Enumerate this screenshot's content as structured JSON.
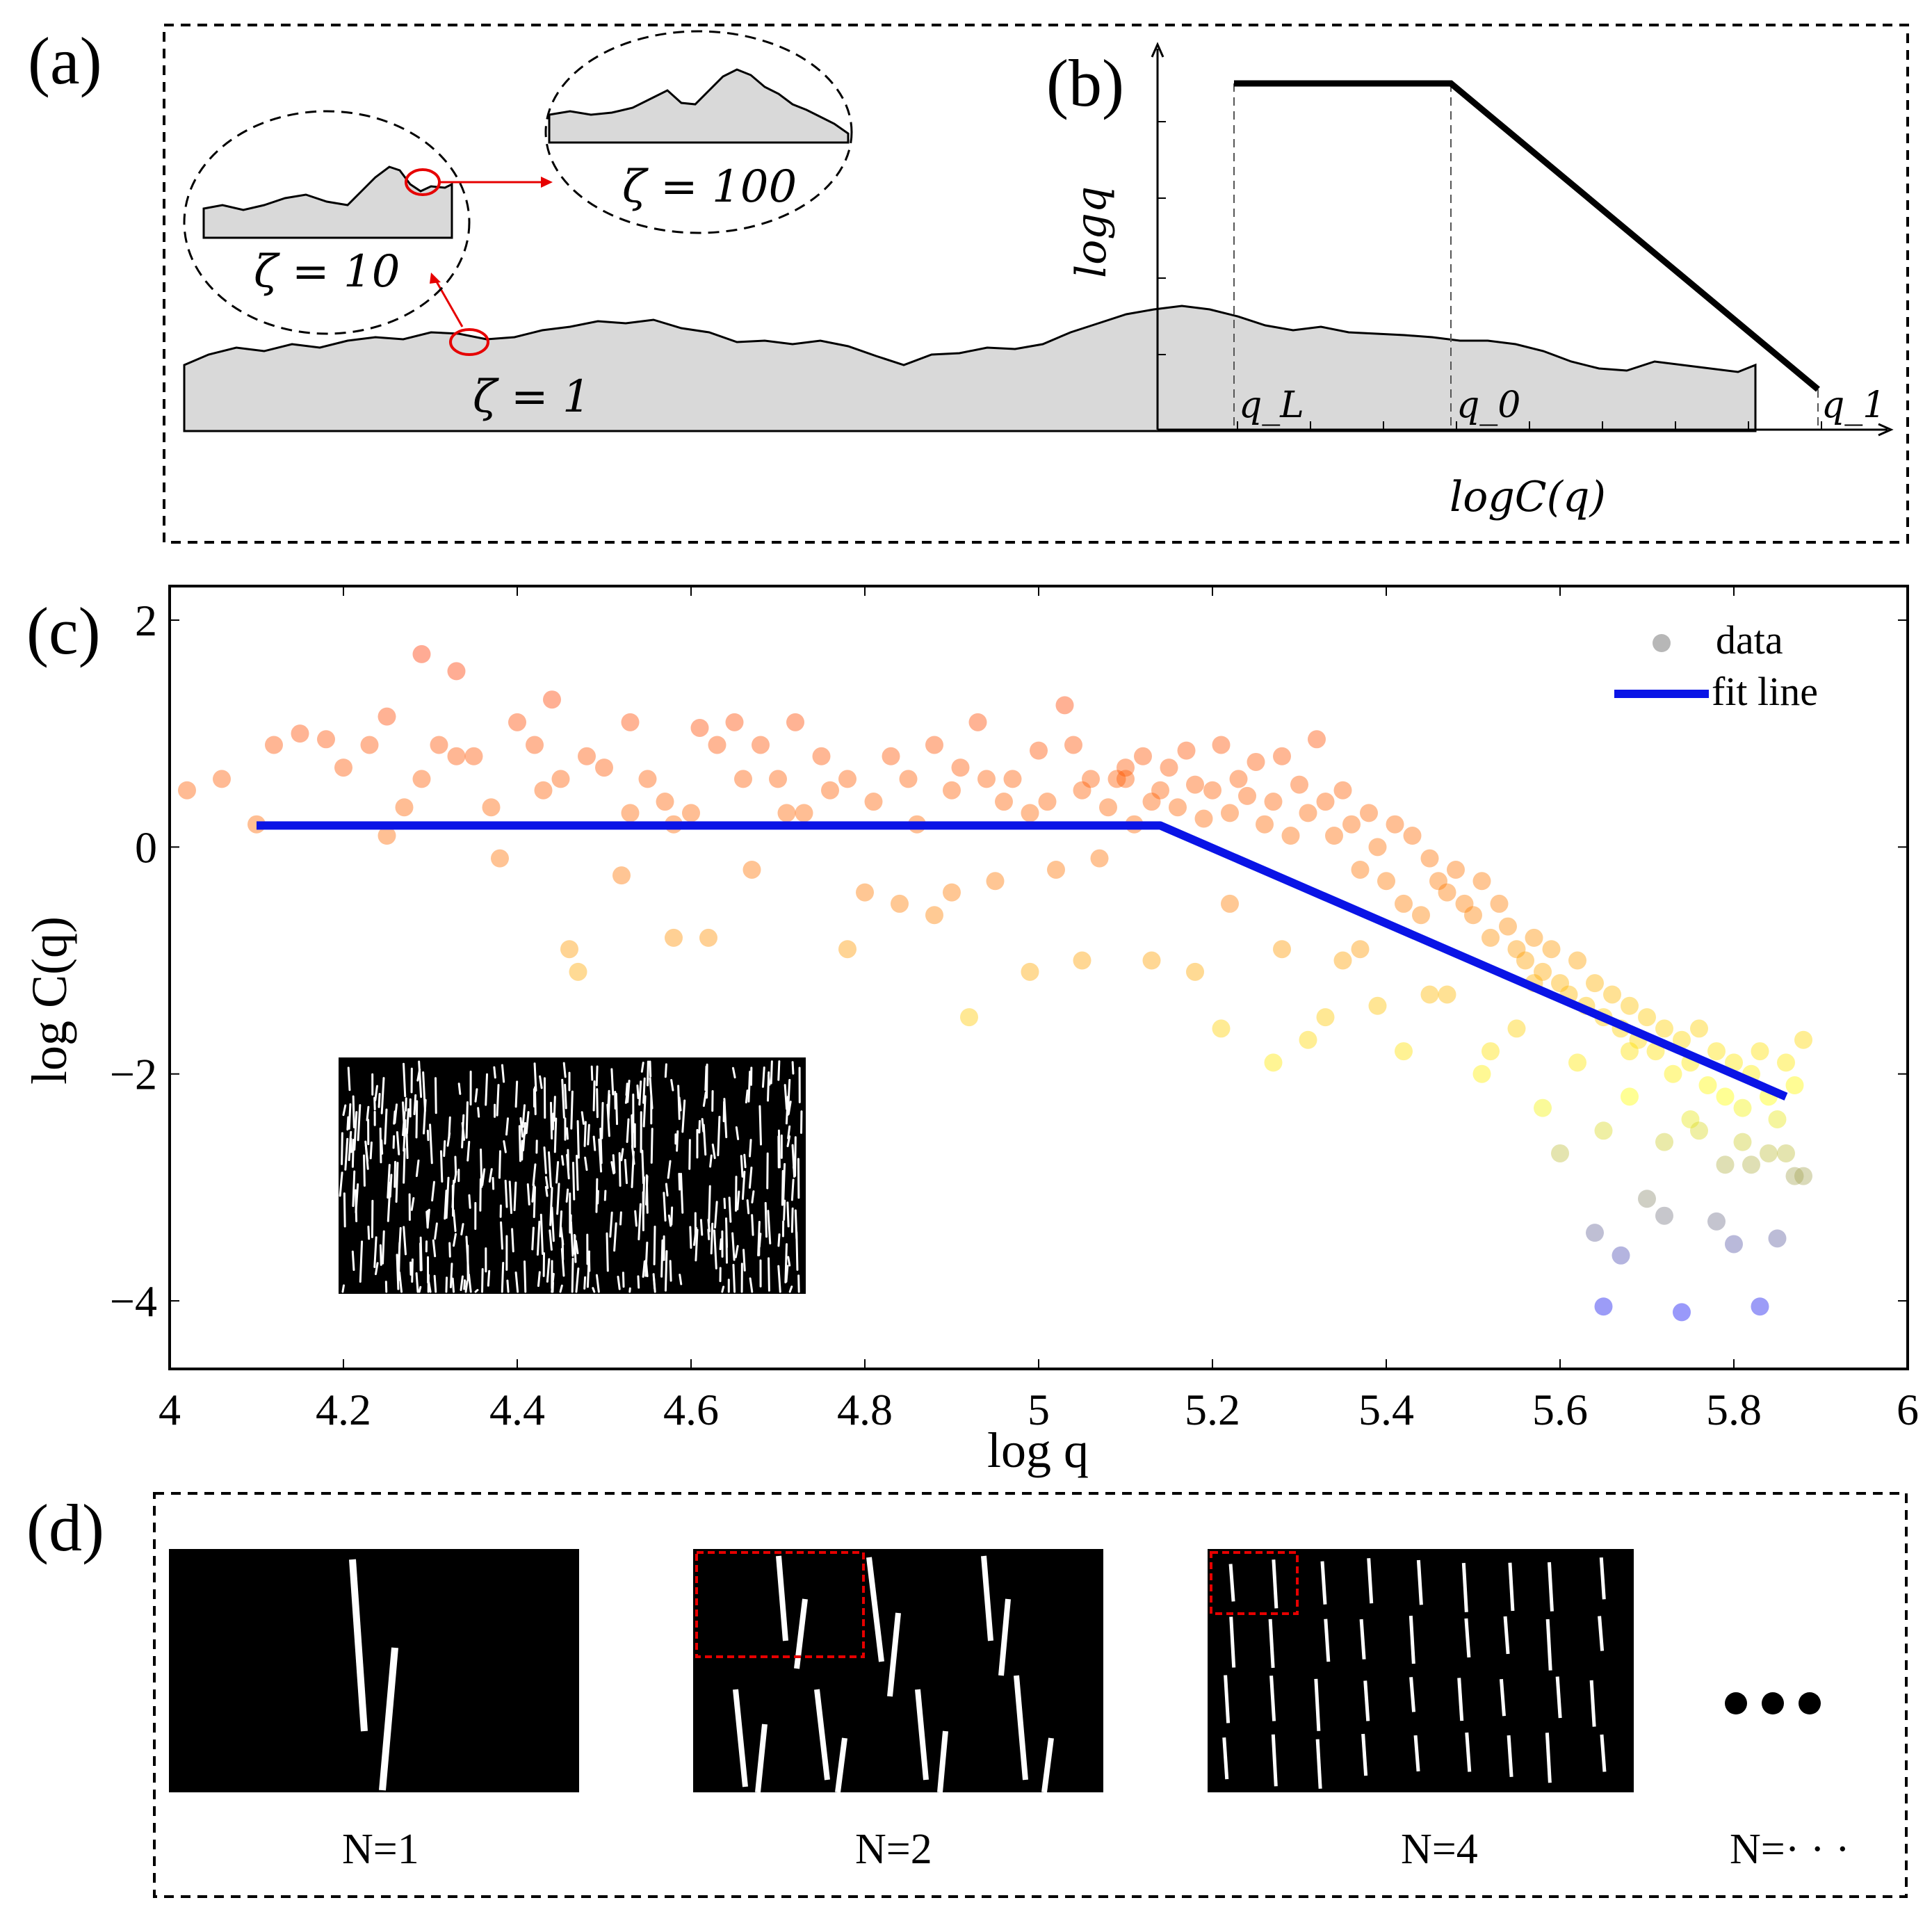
{
  "panel_a": {
    "letter": "(a)",
    "labels": [
      "ζ = 10",
      "ζ = 100",
      "ζ = 1"
    ]
  },
  "panel_b": {
    "letter": "(b)",
    "ylabel": "logq",
    "xlabel": "logC(q)",
    "points": [
      "q_L",
      "q_0",
      "q_1"
    ]
  },
  "panel_c": {
    "letter": "(c)"
  },
  "panel_d": {
    "letter": "(d)",
    "captions": [
      "N=1",
      "N=2",
      "N=4",
      "N=· · ·"
    ],
    "ellipsis": "• • •"
  },
  "colors": {
    "fit_line": "#0a14e6",
    "frame": "#000000",
    "highlight": "#e60000",
    "surface_fill": "#d9d9d9",
    "colormap": [
      "#0000ff",
      "#ffff00",
      "#ff8000",
      "#ff3300"
    ]
  },
  "chart_data": {
    "type": "scatter",
    "title": "",
    "xlabel": "log q",
    "ylabel": "log C(q)",
    "xlim": [
      4,
      6
    ],
    "ylim": [
      -4.6,
      2.3
    ],
    "xticks": [
      "4",
      "4.2",
      "4.4",
      "4.6",
      "4.8",
      "5",
      "5.2",
      "5.4",
      "5.6",
      "5.8",
      "6"
    ],
    "yticks": [
      "−4",
      "−2",
      "0",
      "2"
    ],
    "ytick_values": [
      -4,
      -2,
      0,
      2
    ],
    "xtick_values": [
      4,
      4.2,
      4.4,
      4.6,
      4.8,
      5,
      5.2,
      5.4,
      5.6,
      5.8,
      6
    ],
    "grid": false,
    "legend": {
      "position": "top-right",
      "entries": [
        "data",
        "fit line"
      ]
    },
    "series": [
      {
        "name": "data",
        "kind": "scatter",
        "x": [
          4.02,
          4.06,
          4.1,
          4.12,
          4.15,
          4.18,
          4.2,
          4.23,
          4.25,
          4.27,
          4.29,
          4.31,
          4.33,
          4.35,
          4.37,
          4.38,
          4.4,
          4.42,
          4.43,
          4.45,
          4.47,
          4.48,
          4.5,
          4.52,
          4.53,
          4.55,
          4.57,
          4.58,
          4.6,
          4.61,
          4.63,
          4.65,
          4.66,
          4.68,
          4.7,
          4.72,
          4.73,
          4.75,
          4.76,
          4.78,
          4.8,
          4.81,
          4.83,
          4.85,
          4.86,
          4.88,
          4.9,
          4.91,
          4.93,
          4.94,
          4.96,
          4.97,
          4.99,
          5.0,
          5.01,
          5.03,
          5.04,
          5.05,
          5.06,
          5.08,
          5.09,
          5.1,
          5.11,
          5.12,
          5.13,
          5.14,
          5.15,
          5.16,
          5.17,
          5.18,
          5.19,
          5.2,
          5.21,
          5.22,
          5.23,
          5.24,
          5.25,
          5.26,
          5.27,
          5.28,
          5.29,
          5.3,
          5.31,
          5.32,
          5.33,
          5.34,
          5.35,
          5.36,
          5.37,
          5.38,
          5.39,
          5.4,
          5.41,
          5.42,
          5.43,
          5.44,
          5.45,
          5.46,
          5.47,
          5.48,
          5.49,
          5.5,
          5.51,
          5.52,
          5.53,
          5.54,
          5.55,
          5.56,
          5.57,
          5.58,
          5.59,
          5.6,
          5.61,
          5.62,
          5.63,
          5.64,
          5.65,
          5.66,
          5.67,
          5.68,
          5.69,
          5.7,
          5.71,
          5.72,
          5.73,
          5.74,
          5.75,
          5.76,
          5.77,
          5.78,
          5.79,
          5.8,
          5.81,
          5.82,
          5.83,
          5.84,
          5.85,
          5.86,
          5.87,
          5.88,
          4.88,
          4.95,
          5.02,
          5.07,
          5.22,
          5.28,
          5.35,
          5.45,
          5.55,
          5.62,
          5.68,
          5.75,
          5.81,
          5.86,
          4.46,
          4.62,
          4.78,
          4.92,
          5.05,
          5.18,
          5.31,
          5.42,
          5.51,
          5.58,
          5.65,
          5.72,
          5.79,
          5.84,
          5.64,
          5.72,
          5.85,
          5.65,
          5.8,
          5.74,
          5.67,
          5.83,
          5.78,
          5.7,
          5.88,
          5.6,
          5.52,
          5.47,
          5.39,
          5.33,
          5.27,
          5.21,
          5.13,
          4.99,
          4.84,
          4.71,
          4.58,
          4.44,
          4.33,
          4.29,
          4.25,
          4.53,
          4.67,
          4.9,
          5.1,
          5.37,
          5.57,
          5.68,
          5.76,
          5.82,
          5.87
        ],
        "y": [
          0.5,
          0.6,
          0.2,
          0.9,
          1.0,
          0.95,
          0.7,
          0.9,
          1.15,
          0.35,
          1.7,
          0.9,
          1.55,
          0.8,
          0.35,
          -0.1,
          1.1,
          0.9,
          0.5,
          0.6,
          -1.1,
          0.8,
          0.7,
          -0.25,
          1.1,
          0.6,
          0.4,
          -0.8,
          0.3,
          1.05,
          0.9,
          1.1,
          0.6,
          0.9,
          0.6,
          1.1,
          0.3,
          0.8,
          0.5,
          0.6,
          -0.4,
          0.4,
          0.8,
          0.6,
          0.2,
          0.9,
          0.5,
          0.7,
          1.1,
          0.6,
          0.4,
          0.6,
          0.3,
          0.85,
          0.4,
          1.25,
          0.9,
          0.5,
          0.6,
          0.35,
          0.6,
          0.7,
          0.2,
          0.8,
          0.4,
          0.5,
          0.7,
          0.35,
          0.85,
          0.55,
          0.25,
          0.5,
          0.9,
          0.3,
          0.6,
          0.45,
          0.75,
          0.2,
          0.4,
          0.8,
          0.1,
          0.55,
          0.3,
          0.95,
          0.4,
          0.1,
          0.5,
          0.2,
          -0.2,
          0.3,
          0.0,
          -0.3,
          0.2,
          -0.5,
          0.1,
          -0.6,
          -0.1,
          -0.3,
          -0.4,
          -0.2,
          -0.5,
          -0.6,
          -0.3,
          -0.8,
          -0.5,
          -0.7,
          -0.9,
          -1.0,
          -0.8,
          -1.1,
          -0.9,
          -1.2,
          -1.3,
          -1.0,
          -1.4,
          -1.2,
          -1.5,
          -1.3,
          -1.6,
          -1.4,
          -1.7,
          -1.5,
          -1.8,
          -1.6,
          -2.0,
          -1.7,
          -1.9,
          -1.6,
          -2.1,
          -1.8,
          -2.2,
          -1.9,
          -2.3,
          -2.0,
          -1.8,
          -2.2,
          -2.4,
          -1.9,
          -2.1,
          -1.7,
          -0.6,
          -0.3,
          -0.2,
          -0.1,
          -0.5,
          -0.9,
          -1.0,
          -1.3,
          -1.6,
          -1.9,
          -2.2,
          -2.4,
          -2.6,
          -2.7,
          -0.9,
          -0.8,
          -0.9,
          -1.5,
          -1.0,
          -1.1,
          -1.7,
          -1.8,
          -2.0,
          -2.3,
          -2.5,
          -2.6,
          -2.8,
          -2.7,
          -3.4,
          -3.25,
          -3.45,
          -4.05,
          -3.5,
          -4.1,
          -3.6,
          -4.05,
          -3.3,
          -3.1,
          -2.9,
          -2.7,
          -1.8,
          -1.3,
          -1.4,
          -1.5,
          -1.9,
          -1.6,
          -1.0,
          -1.1,
          -0.5,
          0.3,
          0.2,
          1.3,
          0.8,
          0.6,
          0.1,
          0.3,
          -0.2,
          -0.4,
          0.6,
          -0.9,
          -1.2,
          -1.8,
          -2.5,
          -2.8,
          -2.9
        ]
      },
      {
        "name": "fit line",
        "kind": "line",
        "x": [
          4.1,
          5.14,
          5.86
        ],
        "y": [
          0.19,
          0.19,
          -2.2
        ]
      }
    ]
  }
}
